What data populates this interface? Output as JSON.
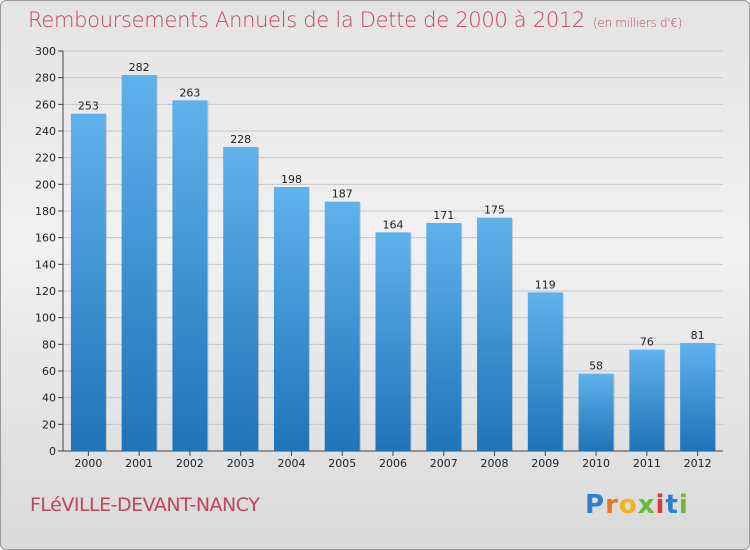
{
  "header": {
    "title": "Remboursements Annuels de la Dette de 2000 à 2012",
    "unit_note": "(en milliers d'€)"
  },
  "footer": {
    "commune": "FLéVILLE-DEVANT-NANCY",
    "logo_letters": [
      "P",
      "r",
      "o",
      "x",
      "i",
      "t",
      "i"
    ]
  },
  "colors": {
    "title": "#c2445a",
    "bar_top": "#5fb2ec",
    "bar_bottom": "#1f73b8"
  },
  "chart_data": {
    "type": "bar",
    "title": "Remboursements Annuels de la Dette de 2000 à 2012",
    "xlabel": "",
    "ylabel": "",
    "ylim": [
      0,
      300
    ],
    "ytick_step": 20,
    "grid": true,
    "categories": [
      "2000",
      "2001",
      "2002",
      "2003",
      "2004",
      "2005",
      "2006",
      "2007",
      "2008",
      "2009",
      "2010",
      "2011",
      "2012"
    ],
    "values": [
      253,
      282,
      263,
      228,
      198,
      187,
      164,
      171,
      175,
      119,
      58,
      76,
      81
    ]
  }
}
